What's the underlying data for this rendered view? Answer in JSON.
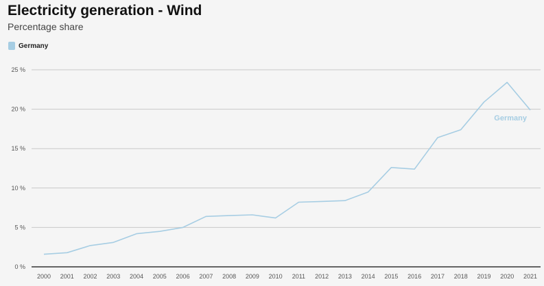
{
  "chart_data": {
    "type": "line",
    "title": "Electricity generation - Wind",
    "subtitle": "Percentage share",
    "xlabel": "",
    "ylabel": "",
    "ylim": [
      0,
      25
    ],
    "yticks": [
      0,
      5,
      10,
      15,
      20,
      25
    ],
    "ytick_labels": [
      "0 %",
      "5 %",
      "10 %",
      "15 %",
      "20 %",
      "25 %"
    ],
    "grid": true,
    "legend_position": "top-left",
    "x": [
      "2000",
      "2001",
      "2002",
      "2003",
      "2004",
      "2005",
      "2006",
      "2007",
      "2008",
      "2009",
      "2010",
      "2011",
      "2012",
      "2013",
      "2014",
      "2015",
      "2016",
      "2017",
      "2018",
      "2019",
      "2020",
      "2021"
    ],
    "series": [
      {
        "name": "Germany",
        "color": "#a6cde3",
        "values": [
          1.6,
          1.8,
          2.7,
          3.1,
          4.2,
          4.5,
          5.0,
          6.4,
          6.5,
          6.6,
          6.2,
          8.2,
          8.3,
          8.4,
          9.5,
          12.6,
          12.4,
          16.4,
          17.4,
          20.9,
          23.4,
          19.9
        ]
      }
    ]
  }
}
